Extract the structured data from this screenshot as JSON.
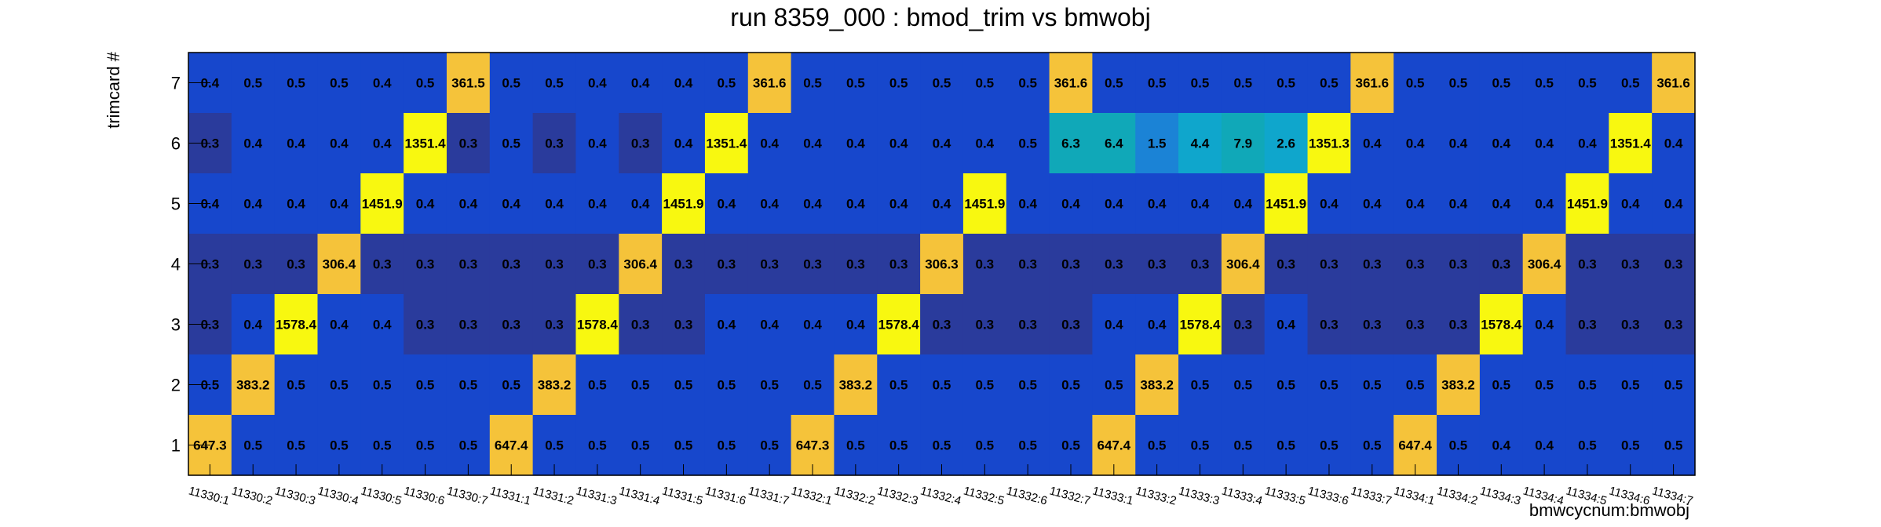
{
  "chart_data": {
    "type": "heatmap",
    "title": "run 8359_000 : bmod_trim vs bmwobj",
    "xlabel": "bmwcycnum:bmwobj",
    "ylabel": "trimcard #",
    "x_categories": [
      "11330:1",
      "11330:2",
      "11330:3",
      "11330:4",
      "11330:5",
      "11330:6",
      "11330:7",
      "11331:1",
      "11331:2",
      "11331:3",
      "11331:4",
      "11331:5",
      "11331:6",
      "11331:7",
      "11332:1",
      "11332:2",
      "11332:3",
      "11332:4",
      "11332:5",
      "11332:6",
      "11332:7",
      "11333:1",
      "11333:2",
      "11333:3",
      "11333:4",
      "11333:5",
      "11333:6",
      "11333:7",
      "11334:1",
      "11334:2",
      "11334:3",
      "11334:4",
      "11334:5",
      "11334:6",
      "11334:7"
    ],
    "y_categories": [
      "1",
      "2",
      "3",
      "4",
      "5",
      "6",
      "7"
    ],
    "rows": [
      {
        "y": "7",
        "values": [
          "0.4",
          "0.5",
          "0.5",
          "0.5",
          "0.4",
          "0.5",
          "361.5",
          "0.5",
          "0.5",
          "0.4",
          "0.4",
          "0.4",
          "0.5",
          "361.6",
          "0.5",
          "0.5",
          "0.5",
          "0.5",
          "0.5",
          "0.5",
          "361.6",
          "0.5",
          "0.5",
          "0.5",
          "0.5",
          "0.5",
          "0.5",
          "361.6",
          "0.5",
          "0.5",
          "0.5",
          "0.5",
          "0.5",
          "0.5",
          "361.6"
        ]
      },
      {
        "y": "6",
        "values": [
          "0.3",
          "0.4",
          "0.4",
          "0.4",
          "0.4",
          "1351.4",
          "0.3",
          "0.5",
          "0.3",
          "0.4",
          "0.3",
          "0.4",
          "1351.4",
          "0.4",
          "0.4",
          "0.4",
          "0.4",
          "0.4",
          "0.4",
          "0.5",
          "6.3",
          "6.4",
          "1.5",
          "4.4",
          "7.9",
          "2.6",
          "1351.3",
          "0.4",
          "0.4",
          "0.4",
          "0.4",
          "0.4",
          "0.4",
          "1351.4",
          "0.4"
        ]
      },
      {
        "y": "5",
        "values": [
          "0.4",
          "0.4",
          "0.4",
          "0.4",
          "1451.9",
          "0.4",
          "0.4",
          "0.4",
          "0.4",
          "0.4",
          "0.4",
          "1451.9",
          "0.4",
          "0.4",
          "0.4",
          "0.4",
          "0.4",
          "0.4",
          "1451.9",
          "0.4",
          "0.4",
          "0.4",
          "0.4",
          "0.4",
          "0.4",
          "1451.9",
          "0.4",
          "0.4",
          "0.4",
          "0.4",
          "0.4",
          "0.4",
          "1451.9",
          "0.4",
          "0.4"
        ]
      },
      {
        "y": "4",
        "values": [
          "0.3",
          "0.3",
          "0.3",
          "306.4",
          "0.3",
          "0.3",
          "0.3",
          "0.3",
          "0.3",
          "0.3",
          "306.4",
          "0.3",
          "0.3",
          "0.3",
          "0.3",
          "0.3",
          "0.3",
          "306.3",
          "0.3",
          "0.3",
          "0.3",
          "0.3",
          "0.3",
          "0.3",
          "306.4",
          "0.3",
          "0.3",
          "0.3",
          "0.3",
          "0.3",
          "0.3",
          "306.4",
          "0.3",
          "0.3",
          "0.3"
        ]
      },
      {
        "y": "3",
        "values": [
          "0.3",
          "0.4",
          "1578.4",
          "0.4",
          "0.4",
          "0.3",
          "0.3",
          "0.3",
          "0.3",
          "1578.4",
          "0.3",
          "0.3",
          "0.4",
          "0.4",
          "0.4",
          "0.4",
          "1578.4",
          "0.3",
          "0.3",
          "0.3",
          "0.3",
          "0.4",
          "0.4",
          "1578.4",
          "0.3",
          "0.4",
          "0.3",
          "0.3",
          "0.3",
          "0.3",
          "1578.4",
          "0.4",
          "0.3",
          "0.3",
          "0.3"
        ]
      },
      {
        "y": "2",
        "values": [
          "0.5",
          "383.2",
          "0.5",
          "0.5",
          "0.5",
          "0.5",
          "0.5",
          "0.5",
          "383.2",
          "0.5",
          "0.5",
          "0.5",
          "0.5",
          "0.5",
          "0.5",
          "383.2",
          "0.5",
          "0.5",
          "0.5",
          "0.5",
          "0.5",
          "0.5",
          "383.2",
          "0.5",
          "0.5",
          "0.5",
          "0.5",
          "0.5",
          "0.5",
          "383.2",
          "0.5",
          "0.5",
          "0.5",
          "0.5",
          "0.5"
        ]
      },
      {
        "y": "1",
        "values": [
          "647.3",
          "0.5",
          "0.5",
          "0.5",
          "0.5",
          "0.5",
          "0.5",
          "647.4",
          "0.5",
          "0.5",
          "0.5",
          "0.5",
          "0.5",
          "0.5",
          "647.3",
          "0.5",
          "0.5",
          "0.5",
          "0.5",
          "0.5",
          "0.5",
          "647.4",
          "0.5",
          "0.5",
          "0.5",
          "0.5",
          "0.5",
          "0.5",
          "647.4",
          "0.5",
          "0.4",
          "0.4",
          "0.5",
          "0.5",
          "0.5"
        ]
      }
    ],
    "grid": false,
    "legend": "none",
    "colors": {
      "low_dark": "#2a3b9c",
      "low": "#1747cc",
      "mid_blue": "#1b83d6",
      "cyan": "#0fa6cc",
      "teal": "#10a8b8",
      "yellow_orange": "#f5c33a",
      "yellow": "#f8f810",
      "frame": "#000000",
      "background": "#ffffff"
    }
  }
}
